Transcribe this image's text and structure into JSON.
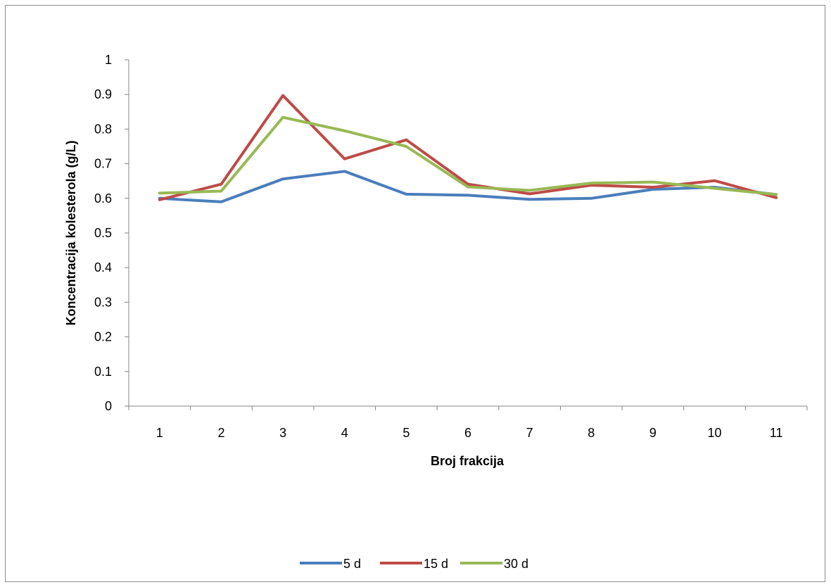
{
  "chart_data": {
    "type": "line",
    "title": "",
    "xlabel": "Broj frakcija",
    "ylabel": "Koncentracija kolesterola (g/L)",
    "ylim": [
      0,
      1
    ],
    "yticks": [
      "0",
      "0.1",
      "0.2",
      "0.3",
      "0.4",
      "0.5",
      "0.6",
      "0.7",
      "0.8",
      "0.9",
      "1"
    ],
    "categories": [
      "1",
      "2",
      "3",
      "4",
      "5",
      "6",
      "7",
      "8",
      "9",
      "10",
      "11"
    ],
    "grid": false,
    "legend_position": "bottom",
    "series": [
      {
        "name": "5 d",
        "color": "#4a7ebb",
        "values": [
          0.6,
          0.59,
          0.656,
          0.678,
          0.612,
          0.609,
          0.597,
          0.6,
          0.626,
          0.632,
          0.611
        ]
      },
      {
        "name": "15 d",
        "color": "#be4b48",
        "values": [
          0.596,
          0.641,
          0.897,
          0.714,
          0.769,
          0.641,
          0.613,
          0.638,
          0.632,
          0.651,
          0.602
        ]
      },
      {
        "name": "30 d",
        "color": "#98b954",
        "values": [
          0.615,
          0.621,
          0.834,
          0.795,
          0.75,
          0.633,
          0.623,
          0.644,
          0.647,
          0.629,
          0.611
        ]
      }
    ]
  }
}
